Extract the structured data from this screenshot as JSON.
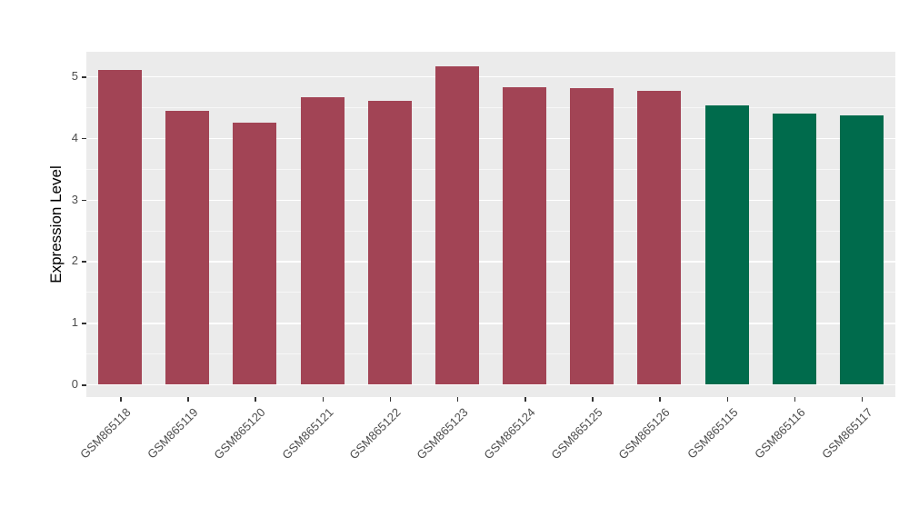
{
  "chart_data": {
    "type": "bar",
    "title": "",
    "xlabel": "",
    "ylabel": "Expression Level",
    "categories": [
      "GSM865118",
      "GSM865119",
      "GSM865120",
      "GSM865121",
      "GSM865122",
      "GSM865123",
      "GSM865124",
      "GSM865125",
      "GSM865126",
      "GSM865115",
      "GSM865116",
      "GSM865117"
    ],
    "values": [
      5.1,
      4.44,
      4.25,
      4.66,
      4.6,
      5.16,
      4.83,
      4.81,
      4.76,
      4.53,
      4.39,
      4.37
    ],
    "bar_colors": [
      "#A24455",
      "#A24455",
      "#A24455",
      "#A24455",
      "#A24455",
      "#A24455",
      "#A24455",
      "#A24455",
      "#A24455",
      "#006B4C",
      "#006B4C",
      "#006B4C"
    ],
    "group_colors": {
      "left_group": "#A24455",
      "right_group": "#006B4C"
    },
    "ylim": [
      0,
      5.4
    ],
    "yticks": [
      0,
      1,
      2,
      3,
      4,
      5
    ],
    "grid": true,
    "legend": "none",
    "panel_background": "#EBEBEB",
    "grid_color": "#FFFFFF",
    "axis_text_color": "#4D4D4D"
  }
}
